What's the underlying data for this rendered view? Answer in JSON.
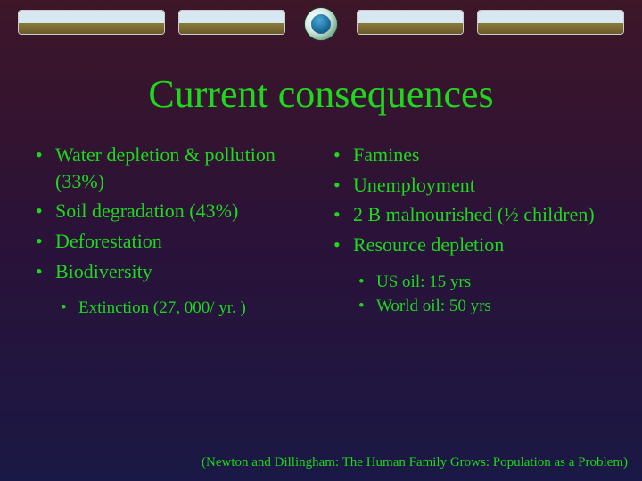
{
  "title": "Current consequences",
  "left_column": {
    "items": [
      "Water depletion & pollution (33%)",
      "Soil degradation (43%)",
      "Deforestation",
      "Biodiversity"
    ],
    "sub_items": [
      "Extinction (27, 000/ yr. )"
    ]
  },
  "right_column": {
    "items": [
      "Famines",
      "Unemployment",
      "2 B malnourished (½ children)",
      "Resource depletion"
    ],
    "sub_items": [
      "US oil: 15 yrs",
      "World oil: 50 yrs"
    ]
  },
  "citation": "(Newton and Dillingham: The Human Family Grows: Population as a Problem)",
  "colors": {
    "text": "#1dd81d",
    "background_top": "#3d1628",
    "background_bottom": "#1a1845"
  },
  "typography": {
    "title_fontsize": 44,
    "body_fontsize": 22,
    "sub_fontsize": 19,
    "citation_fontsize": 15,
    "font_family": "Georgia, Times New Roman, serif"
  }
}
